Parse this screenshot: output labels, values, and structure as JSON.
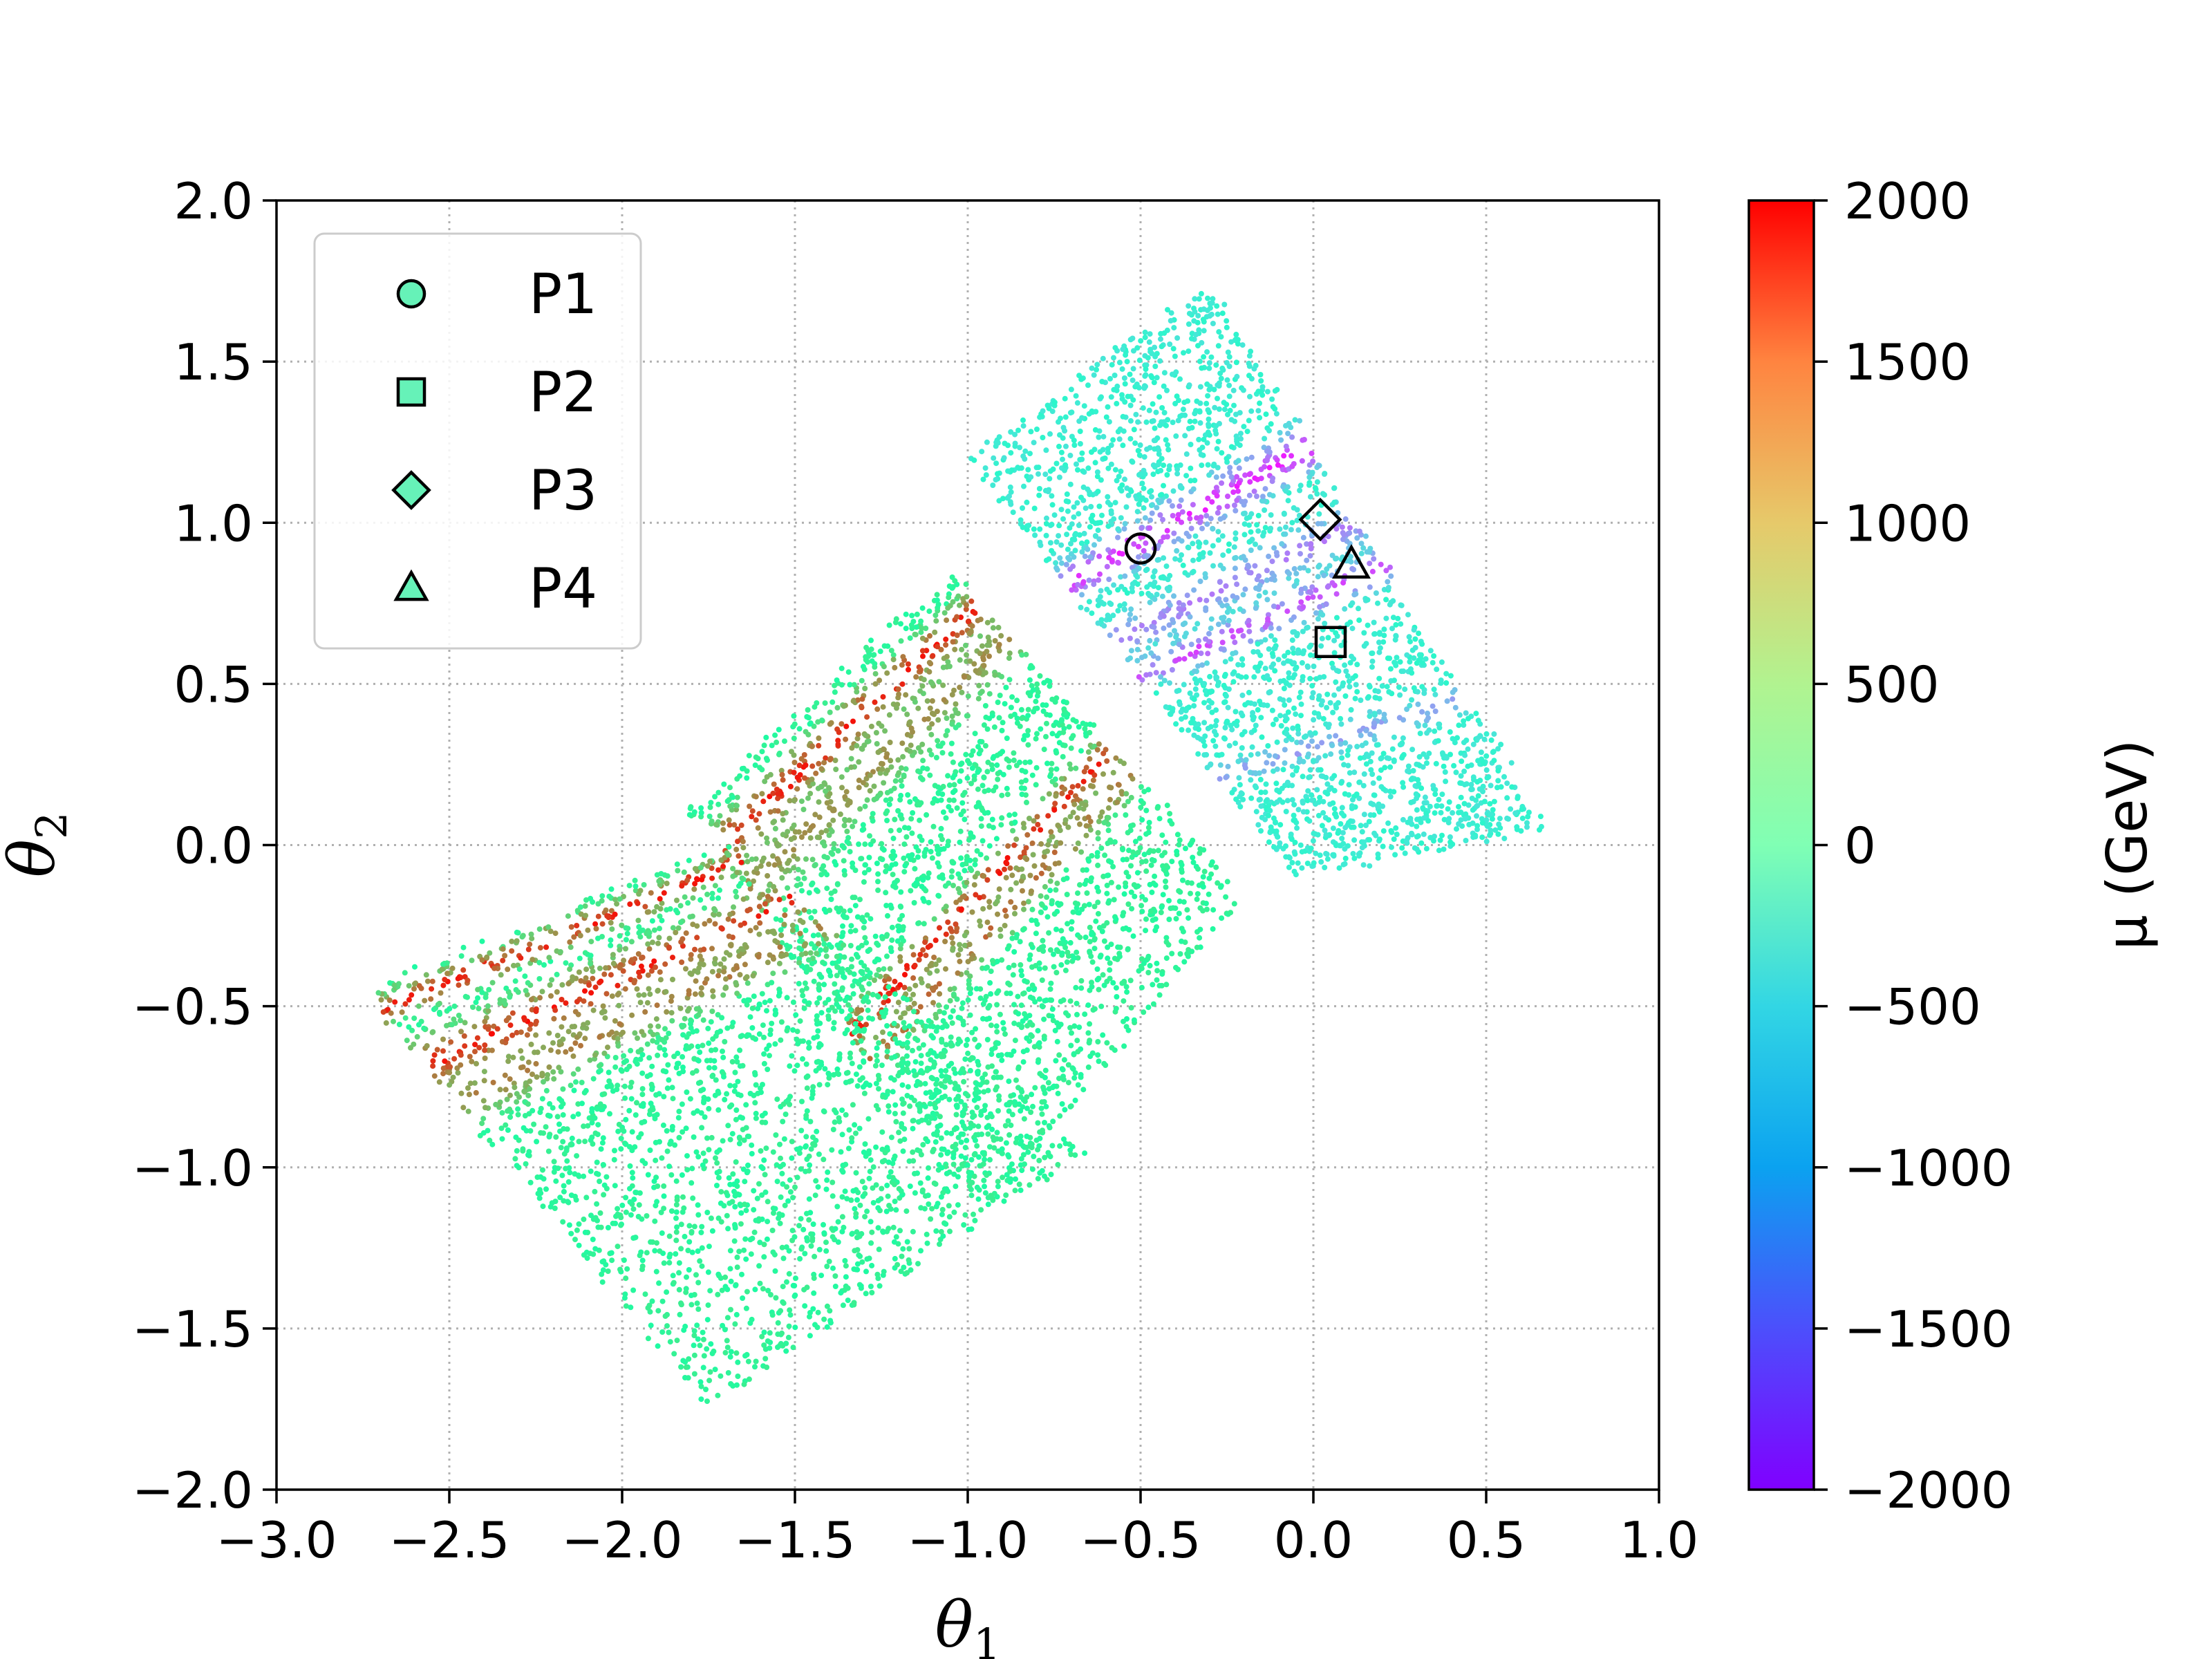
{
  "chart_data": {
    "type": "scatter",
    "title": "",
    "xlabel": "θ",
    "xlabel_sub": "1",
    "ylabel": "θ",
    "ylabel_sub": "2",
    "xlim": [
      -3.0,
      1.0
    ],
    "ylim": [
      -2.0,
      2.0
    ],
    "xticks": [
      -3.0,
      -2.5,
      -2.0,
      -1.5,
      -1.0,
      -0.5,
      0.0,
      0.5,
      1.0
    ],
    "yticks": [
      -2.0,
      -1.5,
      -1.0,
      -0.5,
      0.0,
      0.5,
      1.0,
      1.5,
      2.0
    ],
    "xtick_labels": [
      "−3.0",
      "−2.5",
      "−2.0",
      "−1.5",
      "−1.0",
      "−0.5",
      "0.0",
      "0.5",
      "1.0"
    ],
    "ytick_labels": [
      "−2.0",
      "−1.5",
      "−1.0",
      "−0.5",
      "0.0",
      "0.5",
      "1.0",
      "1.5",
      "2.0"
    ],
    "grid": true,
    "grid_style": "dotted",
    "legend_position": "top-left",
    "colorbar": {
      "label": "μ (GeV)",
      "range": [
        -2000,
        2000
      ],
      "ticks": [
        2000,
        1500,
        1000,
        500,
        0,
        -500,
        -1000,
        -1500,
        -2000
      ],
      "tick_labels": [
        "2000",
        "1500",
        "1000",
        "500",
        "0",
        "−500",
        "−1000",
        "−1500",
        "−2000"
      ],
      "colormap": "rainbow"
    },
    "marker_fill_color": "#66f2b8",
    "benchmark_points": [
      {
        "name": "P1",
        "marker": "circle",
        "x": -0.5,
        "y": 0.92
      },
      {
        "name": "P2",
        "marker": "square",
        "x": 0.05,
        "y": 0.63
      },
      {
        "name": "P3",
        "marker": "diamond",
        "x": 0.02,
        "y": 1.01
      },
      {
        "name": "P4",
        "marker": "triangle",
        "x": 0.11,
        "y": 0.87
      }
    ],
    "scatter_bands": [
      {
        "region": "upper",
        "corners": [
          [
            -1.0,
            1.2
          ],
          [
            -0.3,
            1.75
          ],
          [
            0.68,
            0.05
          ],
          [
            -0.05,
            -0.1
          ]
        ],
        "base_mu": -450,
        "stripes": [
          {
            "t": 0.3,
            "width": 0.05,
            "mu": -1900
          },
          {
            "t": 0.44,
            "width": 0.05,
            "mu": -1400
          },
          {
            "t": 0.52,
            "width": 0.04,
            "mu": -1700
          },
          {
            "t": 0.76,
            "width": 0.03,
            "mu": -1200
          }
        ]
      },
      {
        "region": "middle",
        "corners": [
          [
            -1.82,
            0.1
          ],
          [
            -1.05,
            0.85
          ],
          [
            -0.2,
            -0.15
          ],
          [
            -0.95,
            -1.15
          ]
        ],
        "base_mu": 350,
        "stripes": [
          {
            "t": 0.1,
            "width": 0.06,
            "mu": 1950
          },
          {
            "t": 0.2,
            "width": 0.08,
            "mu": 1300
          },
          {
            "t": 0.55,
            "width": 0.05,
            "mu": 1950
          },
          {
            "t": 0.62,
            "width": 0.05,
            "mu": 1500
          }
        ]
      },
      {
        "region": "lower",
        "corners": [
          [
            -2.75,
            -0.45
          ],
          [
            -1.7,
            0.0
          ],
          [
            -0.65,
            -0.95
          ],
          [
            -1.75,
            -1.75
          ]
        ],
        "base_mu": 350,
        "stripes": [
          {
            "t": 0.05,
            "width": 0.04,
            "mu": 1950
          },
          {
            "t": 0.18,
            "width": 0.07,
            "mu": 1950
          },
          {
            "t": 0.27,
            "width": 0.07,
            "mu": 1400
          },
          {
            "t": 0.5,
            "width": 0.06,
            "mu": 300
          }
        ]
      }
    ]
  }
}
